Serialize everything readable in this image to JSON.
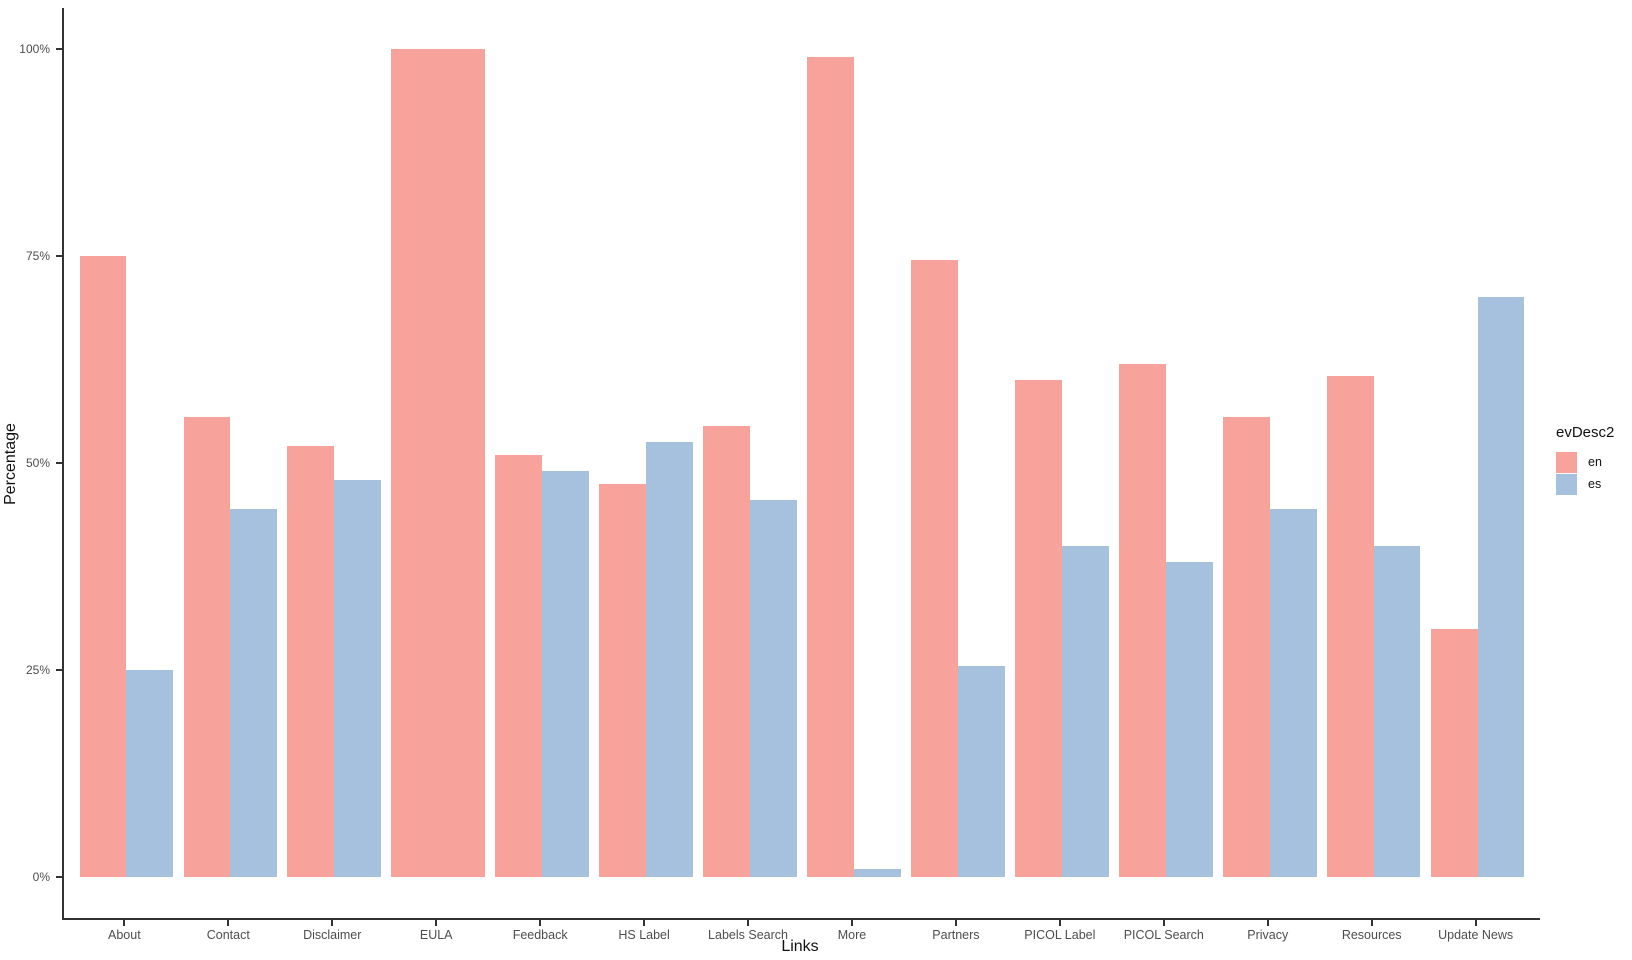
{
  "chart_data": {
    "type": "bar",
    "title": "",
    "xlabel": "Links",
    "ylabel": "Percentage",
    "ylim": [
      0,
      100
    ],
    "ytick_values": [
      0,
      25,
      50,
      75,
      100
    ],
    "ytick_labels": [
      "0%",
      "25%",
      "50%",
      "75%",
      "100%"
    ],
    "categories": [
      "About",
      "Contact",
      "Disclaimer",
      "EULA",
      "Feedback",
      "HS Label",
      "Labels Search",
      "More",
      "Partners",
      "PICOL Label",
      "PICOL Search",
      "Privacy",
      "Resources",
      "Update News"
    ],
    "series": [
      {
        "name": "en",
        "color": "#F7A29B",
        "values": [
          75,
          55.5,
          52,
          100,
          51,
          47.5,
          54.5,
          99,
          74.5,
          60,
          62,
          55.5,
          60.5,
          30
        ]
      },
      {
        "name": "es",
        "color": "#A5C1DD",
        "values": [
          25,
          44.5,
          48,
          null,
          49,
          52.5,
          45.5,
          1,
          25.5,
          40,
          38,
          44.5,
          40,
          70
        ]
      }
    ],
    "legend": {
      "title": "evDesc2",
      "position": "right"
    },
    "grid": false,
    "background": "#FFFFFF",
    "axis_color": "#333333"
  }
}
